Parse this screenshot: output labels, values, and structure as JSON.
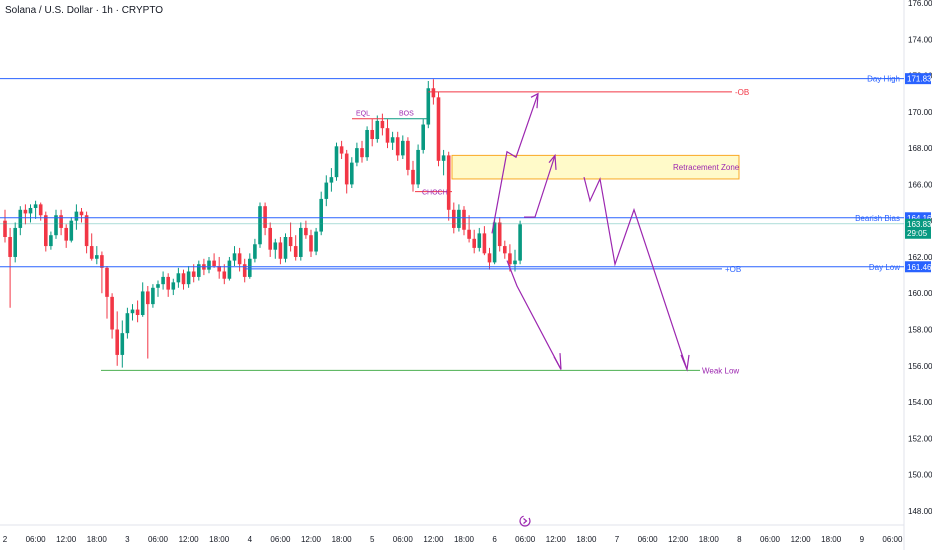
{
  "header": {
    "title": "Solana / U.S. Dollar · 1h · CRYPTO"
  },
  "chart_data": {
    "type": "candlestick",
    "title": "Solana / U.S. Dollar · 1h · CRYPTO",
    "y_axis": {
      "ticks": [
        "176.00",
        "174.00",
        "172.00",
        "170.00",
        "168.00",
        "166.00",
        "164.00",
        "162.00",
        "160.00",
        "158.00",
        "156.00",
        "154.00",
        "152.00",
        "150.00",
        "148.00"
      ],
      "range": [
        146.9,
        176.0
      ]
    },
    "x_axis": {
      "ticks": [
        "2",
        "06:00",
        "12:00",
        "18:00",
        "3",
        "06:00",
        "12:00",
        "18:00",
        "4",
        "06:00",
        "12:00",
        "18:00",
        "5",
        "06:00",
        "12:00",
        "18:00",
        "6",
        "06:00",
        "12:00",
        "18:00",
        "7",
        "06:00",
        "12:00",
        "18:00",
        "8",
        "06:00",
        "12:00",
        "18:00",
        "9",
        "06:00"
      ],
      "start": "2 00:00",
      "step_hours": 6
    },
    "candles": [
      {
        "o": 164.0,
        "h": 164.6,
        "l": 162.8,
        "c": 163.1
      },
      {
        "o": 163.1,
        "h": 163.6,
        "l": 159.2,
        "c": 162.0
      },
      {
        "o": 162.0,
        "h": 163.9,
        "l": 161.7,
        "c": 163.6
      },
      {
        "o": 163.6,
        "h": 164.8,
        "l": 163.2,
        "c": 164.6
      },
      {
        "o": 164.6,
        "h": 164.9,
        "l": 163.8,
        "c": 164.4
      },
      {
        "o": 164.4,
        "h": 164.9,
        "l": 163.9,
        "c": 164.7
      },
      {
        "o": 164.7,
        "h": 165.1,
        "l": 164.1,
        "c": 164.9
      },
      {
        "o": 164.9,
        "h": 165.0,
        "l": 164.0,
        "c": 164.3
      },
      {
        "o": 164.3,
        "h": 164.5,
        "l": 162.3,
        "c": 162.6
      },
      {
        "o": 162.6,
        "h": 163.4,
        "l": 162.4,
        "c": 163.2
      },
      {
        "o": 163.2,
        "h": 164.6,
        "l": 163.0,
        "c": 164.3
      },
      {
        "o": 164.3,
        "h": 164.6,
        "l": 163.2,
        "c": 163.6
      },
      {
        "o": 163.6,
        "h": 163.8,
        "l": 162.5,
        "c": 162.9
      },
      {
        "o": 162.9,
        "h": 164.2,
        "l": 162.8,
        "c": 164.0
      },
      {
        "o": 164.0,
        "h": 164.9,
        "l": 163.5,
        "c": 164.5
      },
      {
        "o": 164.5,
        "h": 164.7,
        "l": 163.9,
        "c": 164.3
      },
      {
        "o": 164.3,
        "h": 164.5,
        "l": 162.2,
        "c": 162.6
      },
      {
        "o": 162.6,
        "h": 163.3,
        "l": 161.8,
        "c": 161.9
      },
      {
        "o": 161.9,
        "h": 162.6,
        "l": 161.6,
        "c": 162.1
      },
      {
        "o": 162.1,
        "h": 162.3,
        "l": 160.0,
        "c": 161.4
      },
      {
        "o": 161.4,
        "h": 161.5,
        "l": 158.6,
        "c": 159.8
      },
      {
        "o": 159.8,
        "h": 160.0,
        "l": 157.5,
        "c": 158.0
      },
      {
        "o": 158.0,
        "h": 159.0,
        "l": 156.0,
        "c": 156.6
      },
      {
        "o": 156.6,
        "h": 158.5,
        "l": 155.9,
        "c": 157.8
      },
      {
        "o": 157.8,
        "h": 159.2,
        "l": 157.5,
        "c": 158.9
      },
      {
        "o": 158.9,
        "h": 159.4,
        "l": 158.5,
        "c": 159.1
      },
      {
        "o": 159.1,
        "h": 159.6,
        "l": 158.4,
        "c": 158.8
      },
      {
        "o": 158.8,
        "h": 160.6,
        "l": 158.7,
        "c": 160.1
      },
      {
        "o": 160.1,
        "h": 160.4,
        "l": 156.4,
        "c": 159.4
      },
      {
        "o": 159.4,
        "h": 160.5,
        "l": 159.2,
        "c": 160.3
      },
      {
        "o": 160.3,
        "h": 160.7,
        "l": 159.8,
        "c": 160.5
      },
      {
        "o": 160.5,
        "h": 161.2,
        "l": 160.2,
        "c": 160.9
      },
      {
        "o": 160.9,
        "h": 161.1,
        "l": 159.8,
        "c": 160.2
      },
      {
        "o": 160.2,
        "h": 160.8,
        "l": 159.9,
        "c": 160.6
      },
      {
        "o": 160.6,
        "h": 161.4,
        "l": 160.3,
        "c": 161.1
      },
      {
        "o": 161.1,
        "h": 161.3,
        "l": 160.2,
        "c": 160.5
      },
      {
        "o": 160.5,
        "h": 161.5,
        "l": 160.3,
        "c": 161.2
      },
      {
        "o": 161.2,
        "h": 161.6,
        "l": 160.6,
        "c": 160.9
      },
      {
        "o": 160.9,
        "h": 161.8,
        "l": 160.7,
        "c": 161.6
      },
      {
        "o": 161.6,
        "h": 161.9,
        "l": 161.0,
        "c": 161.3
      },
      {
        "o": 161.3,
        "h": 162.0,
        "l": 161.1,
        "c": 161.8
      },
      {
        "o": 161.8,
        "h": 162.2,
        "l": 161.4,
        "c": 161.5
      },
      {
        "o": 161.5,
        "h": 162.0,
        "l": 160.8,
        "c": 161.2
      },
      {
        "o": 161.2,
        "h": 161.6,
        "l": 160.5,
        "c": 160.8
      },
      {
        "o": 160.8,
        "h": 162.0,
        "l": 160.7,
        "c": 161.8
      },
      {
        "o": 161.8,
        "h": 162.6,
        "l": 161.5,
        "c": 162.2
      },
      {
        "o": 162.2,
        "h": 162.5,
        "l": 161.2,
        "c": 161.6
      },
      {
        "o": 161.6,
        "h": 161.9,
        "l": 160.6,
        "c": 160.9
      },
      {
        "o": 160.9,
        "h": 162.2,
        "l": 160.8,
        "c": 161.9
      },
      {
        "o": 161.9,
        "h": 163.0,
        "l": 161.7,
        "c": 162.7
      },
      {
        "o": 162.7,
        "h": 165.0,
        "l": 162.5,
        "c": 164.8
      },
      {
        "o": 164.8,
        "h": 165.0,
        "l": 163.2,
        "c": 163.6
      },
      {
        "o": 163.6,
        "h": 163.9,
        "l": 162.0,
        "c": 162.4
      },
      {
        "o": 162.4,
        "h": 163.0,
        "l": 161.9,
        "c": 162.8
      },
      {
        "o": 162.8,
        "h": 163.1,
        "l": 161.6,
        "c": 161.9
      },
      {
        "o": 161.9,
        "h": 163.3,
        "l": 161.7,
        "c": 163.1
      },
      {
        "o": 163.1,
        "h": 163.9,
        "l": 162.3,
        "c": 162.6
      },
      {
        "o": 162.6,
        "h": 163.2,
        "l": 161.8,
        "c": 162.0
      },
      {
        "o": 162.0,
        "h": 163.9,
        "l": 161.8,
        "c": 163.6
      },
      {
        "o": 163.6,
        "h": 164.0,
        "l": 163.0,
        "c": 163.2
      },
      {
        "o": 163.2,
        "h": 163.5,
        "l": 162.0,
        "c": 162.3
      },
      {
        "o": 162.3,
        "h": 163.6,
        "l": 162.1,
        "c": 163.4
      },
      {
        "o": 163.4,
        "h": 165.6,
        "l": 163.2,
        "c": 165.2
      },
      {
        "o": 165.2,
        "h": 166.5,
        "l": 164.8,
        "c": 166.1
      },
      {
        "o": 166.1,
        "h": 166.9,
        "l": 165.6,
        "c": 166.4
      },
      {
        "o": 166.4,
        "h": 168.3,
        "l": 166.2,
        "c": 168.1
      },
      {
        "o": 168.1,
        "h": 168.4,
        "l": 167.4,
        "c": 167.7
      },
      {
        "o": 167.7,
        "h": 167.9,
        "l": 165.5,
        "c": 166.0
      },
      {
        "o": 166.0,
        "h": 167.5,
        "l": 165.8,
        "c": 167.2
      },
      {
        "o": 167.2,
        "h": 168.3,
        "l": 167.0,
        "c": 168.0
      },
      {
        "o": 168.0,
        "h": 168.4,
        "l": 167.2,
        "c": 167.5
      },
      {
        "o": 167.5,
        "h": 169.2,
        "l": 167.3,
        "c": 169.0
      },
      {
        "o": 169.0,
        "h": 169.6,
        "l": 168.1,
        "c": 168.5
      },
      {
        "o": 168.5,
        "h": 169.8,
        "l": 168.3,
        "c": 169.5
      },
      {
        "o": 169.5,
        "h": 169.9,
        "l": 168.7,
        "c": 169.1
      },
      {
        "o": 169.1,
        "h": 169.6,
        "l": 168.0,
        "c": 168.3
      },
      {
        "o": 168.3,
        "h": 168.9,
        "l": 167.9,
        "c": 168.6
      },
      {
        "o": 168.6,
        "h": 168.9,
        "l": 167.3,
        "c": 167.6
      },
      {
        "o": 167.6,
        "h": 168.7,
        "l": 167.4,
        "c": 168.4
      },
      {
        "o": 168.4,
        "h": 168.6,
        "l": 166.5,
        "c": 166.8
      },
      {
        "o": 166.8,
        "h": 167.3,
        "l": 165.6,
        "c": 166.0
      },
      {
        "o": 166.0,
        "h": 168.2,
        "l": 165.8,
        "c": 167.9
      },
      {
        "o": 167.9,
        "h": 169.6,
        "l": 167.7,
        "c": 169.3
      },
      {
        "o": 169.3,
        "h": 171.7,
        "l": 169.1,
        "c": 171.3
      },
      {
        "o": 171.3,
        "h": 171.8,
        "l": 170.4,
        "c": 170.8
      },
      {
        "o": 170.8,
        "h": 171.1,
        "l": 167.0,
        "c": 167.3
      },
      {
        "o": 167.3,
        "h": 167.9,
        "l": 166.5,
        "c": 167.6
      },
      {
        "o": 167.6,
        "h": 167.8,
        "l": 164.0,
        "c": 164.6
      },
      {
        "o": 164.6,
        "h": 165.0,
        "l": 163.3,
        "c": 163.6
      },
      {
        "o": 163.6,
        "h": 164.9,
        "l": 163.4,
        "c": 164.6
      },
      {
        "o": 164.6,
        "h": 164.8,
        "l": 163.2,
        "c": 163.5
      },
      {
        "o": 163.5,
        "h": 164.3,
        "l": 162.8,
        "c": 163.0
      },
      {
        "o": 163.0,
        "h": 163.5,
        "l": 162.2,
        "c": 162.5
      },
      {
        "o": 162.5,
        "h": 163.6,
        "l": 162.3,
        "c": 163.3
      },
      {
        "o": 163.3,
        "h": 163.7,
        "l": 162.1,
        "c": 162.2
      },
      {
        "o": 162.2,
        "h": 162.5,
        "l": 161.3,
        "c": 161.7
      },
      {
        "o": 161.7,
        "h": 164.1,
        "l": 161.6,
        "c": 163.9
      },
      {
        "o": 163.9,
        "h": 164.2,
        "l": 162.3,
        "c": 162.6
      },
      {
        "o": 162.6,
        "h": 162.9,
        "l": 161.9,
        "c": 162.2
      },
      {
        "o": 162.2,
        "h": 162.7,
        "l": 161.2,
        "c": 161.6
      },
      {
        "o": 161.6,
        "h": 162.4,
        "l": 161.2,
        "c": 161.8
      },
      {
        "o": 161.8,
        "h": 164.0,
        "l": 161.6,
        "c": 163.8
      }
    ],
    "price_levels": [
      {
        "name": "Day High",
        "value": 171.83,
        "label": "171.83",
        "color": "#2962ff"
      },
      {
        "name": "Bearish Bias",
        "value": 164.16,
        "label": "164.16",
        "color": "#2962ff"
      },
      {
        "name": "Day Low",
        "value": 161.46,
        "label": "161.46",
        "color": "#2962ff"
      },
      {
        "name": "-OB",
        "value": 171.1,
        "color": "#f23645"
      },
      {
        "name": "+OB",
        "value": 161.4,
        "color": "#2962ff"
      },
      {
        "name": "Weak Low",
        "value": 155.75,
        "color": "#4caf50"
      },
      {
        "name": "EQL",
        "value": 169.62
      },
      {
        "name": "BOS",
        "value": 169.62
      },
      {
        "name": "CHOCH",
        "value": 165.6
      }
    ],
    "current_price": {
      "value": 163.83,
      "label": "163.83",
      "countdown": "29:05",
      "color": "#089981"
    },
    "retracement_zone": {
      "label": "Retracement Zone",
      "top": 167.6,
      "bottom": 166.3
    }
  }
}
